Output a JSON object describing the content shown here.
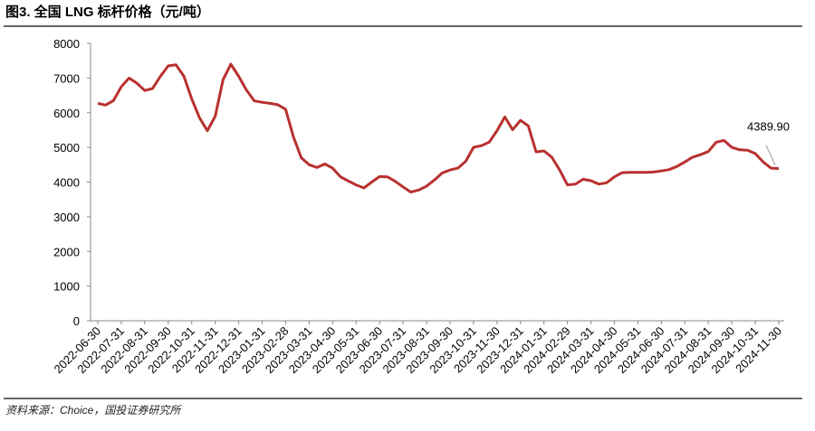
{
  "chart_data": {
    "type": "line",
    "title": "图3. 全国 LNG 标杆价格（元/吨）",
    "source": "资料来源：Choice，国投证券研究所",
    "categories": [
      "2022-06-30",
      null,
      null,
      "2022-07-31",
      null,
      null,
      "2022-08-31",
      null,
      null,
      "2022-09-30",
      null,
      null,
      "2022-10-31",
      null,
      null,
      "2022-11-31",
      null,
      null,
      "2022-12-31",
      null,
      null,
      "2023-01-31",
      null,
      null,
      "2023-02-28",
      null,
      null,
      "2023-03-31",
      null,
      null,
      "2023-04-30",
      null,
      null,
      "2023-05-31",
      null,
      null,
      "2023-06-30",
      null,
      null,
      "2023-07-31",
      null,
      null,
      "2023-08-31",
      null,
      null,
      "2023-09-30",
      null,
      null,
      "2023-10-31",
      null,
      null,
      "2023-11-30",
      null,
      null,
      "2023-12-31",
      null,
      null,
      "2024-01-31",
      null,
      null,
      "2024-02-29",
      null,
      null,
      "2024-03-31",
      null,
      null,
      "2024-04-30",
      null,
      null,
      "2024-05-31",
      null,
      null,
      "2024-06-30",
      null,
      null,
      "2024-07-31",
      null,
      null,
      "2024-08-31",
      null,
      null,
      "2024-09-30",
      null,
      null,
      "2024-10-31",
      null,
      null,
      "2024-11-30"
    ],
    "series": [
      {
        "name": "全国 LNG 标杆价格",
        "color": "#b8312f",
        "values": [
          6270,
          6220,
          6350,
          6750,
          7000,
          6850,
          6640,
          6700,
          7050,
          7350,
          7380,
          7050,
          6400,
          5850,
          5480,
          5900,
          6950,
          7400,
          7050,
          6650,
          6340,
          6300,
          6270,
          6230,
          6100,
          5300,
          4700,
          4500,
          4420,
          4520,
          4400,
          4150,
          4030,
          3920,
          3830,
          4000,
          4160,
          4150,
          4020,
          3860,
          3710,
          3770,
          3880,
          4060,
          4260,
          4350,
          4400,
          4600,
          5000,
          5050,
          5150,
          5480,
          5880,
          5510,
          5780,
          5620,
          4870,
          4900,
          4720,
          4350,
          3920,
          3940,
          4080,
          4040,
          3940,
          3980,
          4150,
          4270,
          4280,
          4280,
          4280,
          4290,
          4320,
          4360,
          4450,
          4580,
          4720,
          4790,
          4880,
          5150,
          5200,
          5000,
          4930,
          4920,
          4820,
          4580,
          4400,
          4389.9
        ],
        "value_labels": [
          null,
          null,
          null,
          null,
          null,
          null,
          null,
          null,
          null,
          null,
          null,
          null,
          null,
          null,
          null,
          null,
          null,
          null,
          null,
          null,
          null,
          null,
          null,
          null,
          null,
          null,
          null,
          null,
          null,
          null,
          null,
          null,
          null,
          null,
          null,
          null,
          null,
          null,
          null,
          null,
          null,
          null,
          null,
          null,
          null,
          null,
          null,
          null,
          null,
          null,
          null,
          null,
          null,
          null,
          null,
          null,
          null,
          null,
          null,
          null,
          null,
          null,
          null,
          null,
          null,
          null,
          null,
          null,
          null,
          null,
          null,
          null,
          null,
          null,
          null,
          null,
          null,
          null,
          null,
          null,
          null,
          null,
          null,
          null,
          null,
          null,
          null,
          "4389.90"
        ]
      }
    ],
    "ylim": [
      0,
      8000
    ],
    "yticks": [
      0,
      1000,
      2000,
      3000,
      4000,
      5000,
      6000,
      7000,
      8000
    ],
    "grid": false
  }
}
